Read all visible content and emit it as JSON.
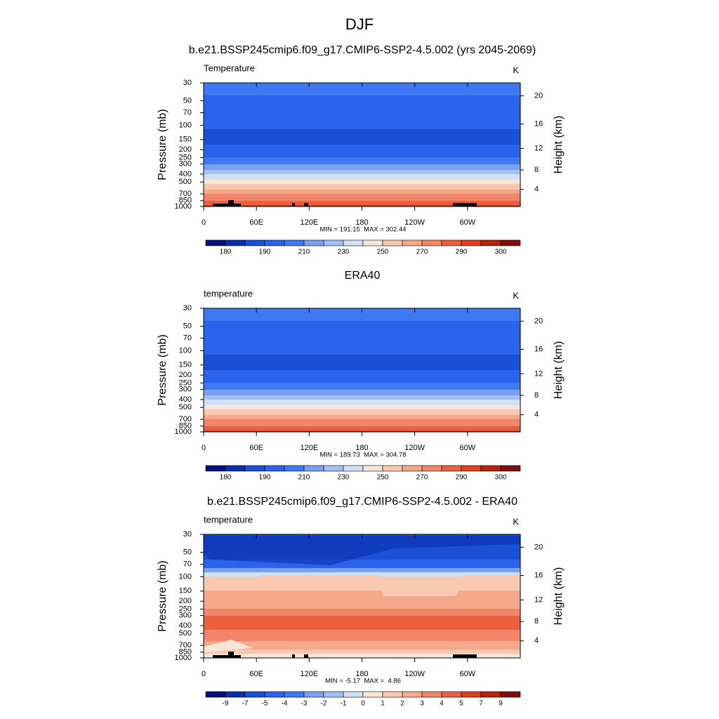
{
  "title": "DJF",
  "chart_data": [
    {
      "type": "contour",
      "title": "b.e21.BSSP245cmip6.f09_g17.CMIP6-SSP2-4.5.002 (yrs 2045-2069)",
      "left_label": "Temperature",
      "units": "K",
      "ylabel": "Pressure (mb)",
      "y2label": "Height (km)",
      "log_y": true,
      "ylim": [
        1000,
        30
      ],
      "yticks": [
        30,
        50,
        70,
        100,
        150,
        200,
        250,
        300,
        400,
        500,
        700,
        850,
        1000
      ],
      "y2ticks": [
        4,
        8,
        12,
        16,
        20
      ],
      "xlim": [
        0,
        360
      ],
      "xticks": [
        0,
        {
          "value": 60,
          "label": "60E"
        },
        {
          "value": 120,
          "label": "120E"
        },
        180,
        {
          "value": 240,
          "label": "120W"
        },
        {
          "value": 300,
          "label": "60W"
        }
      ],
      "annotation": "MIN = 191.15  MAX = 302.44",
      "levels": [
        180,
        null,
        190,
        null,
        210,
        null,
        230,
        null,
        250,
        null,
        270,
        null,
        290,
        null,
        300
      ],
      "colors": [
        "#050f7a",
        "#0a2eab",
        "#1a4fd6",
        "#2b63ee",
        "#3e78f2",
        "#7aa0f2",
        "#a3bff5",
        "#cfe0f7",
        "#fae6d6",
        "#f8c8b0",
        "#f5a88a",
        "#f2866a",
        "#eb5e3e",
        "#e03d1c",
        "#b8230e",
        "#800c0c"
      ]
    },
    {
      "type": "contour",
      "title": "ERA40",
      "left_label": "temperature",
      "units": "K",
      "ylabel": "Pressure (mb)",
      "y2label": "Height (km)",
      "log_y": true,
      "ylim": [
        1000,
        30
      ],
      "yticks": [
        30,
        50,
        70,
        100,
        150,
        200,
        250,
        300,
        400,
        500,
        700,
        850,
        1000
      ],
      "y2ticks": [
        4,
        8,
        12,
        16,
        20
      ],
      "xlim": [
        0,
        360
      ],
      "xticks": [
        0,
        {
          "value": 60,
          "label": "60E"
        },
        {
          "value": 120,
          "label": "120E"
        },
        180,
        {
          "value": 240,
          "label": "120W"
        },
        {
          "value": 300,
          "label": "60W"
        }
      ],
      "annotation": "MIN = 189.73  MAX = 304.78",
      "levels": [
        180,
        null,
        190,
        null,
        210,
        null,
        230,
        null,
        250,
        null,
        270,
        null,
        290,
        null,
        300
      ],
      "colors": [
        "#050f7a",
        "#0a2eab",
        "#1a4fd6",
        "#2b63ee",
        "#3e78f2",
        "#7aa0f2",
        "#a3bff5",
        "#cfe0f7",
        "#fae6d6",
        "#f8c8b0",
        "#f5a88a",
        "#f2866a",
        "#eb5e3e",
        "#e03d1c",
        "#b8230e",
        "#800c0c"
      ]
    },
    {
      "type": "contour-diff",
      "title": "b.e21.BSSP245cmip6.f09_g17.CMIP6-SSP2-4.5.002 - ERA40",
      "left_label": "temperature",
      "units": "K",
      "ylabel": "Pressure (mb)",
      "y2label": "Height (km)",
      "log_y": true,
      "ylim": [
        1000,
        30
      ],
      "yticks": [
        30,
        50,
        70,
        100,
        150,
        200,
        250,
        300,
        400,
        500,
        700,
        850,
        1000
      ],
      "y2ticks": [
        4,
        8,
        12,
        16,
        20
      ],
      "xlim": [
        0,
        360
      ],
      "xticks": [
        0,
        {
          "value": 60,
          "label": "60E"
        },
        {
          "value": 120,
          "label": "120E"
        },
        180,
        {
          "value": 240,
          "label": "120W"
        },
        {
          "value": 300,
          "label": "60W"
        }
      ],
      "annotation": "MIN = -5.17  MAX =  4.86",
      "levels": [
        -9,
        -7,
        -5,
        -4,
        -3,
        -2,
        -1,
        0,
        1,
        2,
        3,
        4,
        5,
        7,
        9
      ],
      "colors": [
        "#050f7a",
        "#0a2eab",
        "#1a4fd6",
        "#2b63ee",
        "#3e78f2",
        "#7aa0f2",
        "#a3bff5",
        "#cfe0f7",
        "#fae6d6",
        "#f8c8b0",
        "#f5a88a",
        "#f2866a",
        "#eb5e3e",
        "#e03d1c",
        "#b8230e",
        "#800c0c"
      ]
    }
  ]
}
